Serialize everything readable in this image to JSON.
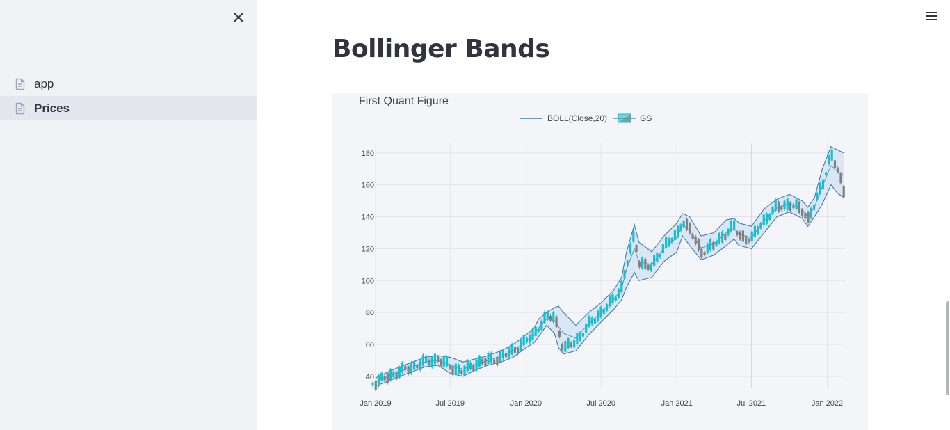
{
  "sidebar": {
    "items": [
      {
        "label": "app",
        "icon": "doc-icon",
        "active": false
      },
      {
        "label": "Prices",
        "icon": "doc-icon",
        "active": true
      }
    ]
  },
  "main": {
    "title": "Bollinger Bands"
  },
  "chart_data": {
    "type": "line",
    "title": "First Quant Figure",
    "xlabel": "",
    "ylabel": "",
    "legend": {
      "placement": "top-center",
      "entries": [
        "BOLL(Close,20)",
        "GS"
      ]
    },
    "x_ticks": [
      "Jan 2019",
      "Jul 2019",
      "Jan 2020",
      "Jul 2020",
      "Jan 2021",
      "Jul 2021",
      "Jan 2022"
    ],
    "y_ticks": [
      40,
      60,
      80,
      100,
      120,
      140,
      160,
      180
    ],
    "ylim": [
      33,
      186
    ],
    "xlim": [
      "2019-01-01",
      "2022-02-13"
    ],
    "grid": true,
    "colors": {
      "band": "#3c78b4",
      "band_fill": "#d2e1f0",
      "candle_up": "#17becf",
      "candle_down": "#808080"
    },
    "series": [
      {
        "name": "GS",
        "kind": "candlestick-approx",
        "x": [
          "2019-01-01",
          "2019-02-01",
          "2019-03-01",
          "2019-04-01",
          "2019-05-01",
          "2019-06-01",
          "2019-07-01",
          "2019-08-01",
          "2019-09-01",
          "2019-10-01",
          "2019-11-01",
          "2019-12-01",
          "2020-01-01",
          "2020-01-20",
          "2020-02-01",
          "2020-02-20",
          "2020-03-10",
          "2020-03-20",
          "2020-04-01",
          "2020-05-01",
          "2020-06-01",
          "2020-07-01",
          "2020-08-01",
          "2020-08-20",
          "2020-09-01",
          "2020-09-20",
          "2020-10-01",
          "2020-11-01",
          "2020-12-01",
          "2021-01-01",
          "2021-01-15",
          "2021-02-01",
          "2021-03-01",
          "2021-04-01",
          "2021-05-01",
          "2021-05-20",
          "2021-06-01",
          "2021-07-01",
          "2021-08-01",
          "2021-09-01",
          "2021-10-01",
          "2021-11-01",
          "2021-11-15",
          "2021-12-01",
          "2021-12-20",
          "2022-01-10",
          "2022-01-25",
          "2022-02-10"
        ],
        "values": [
          36,
          40,
          43,
          46,
          49,
          51,
          46,
          43,
          48,
          50,
          52,
          56,
          62,
          66,
          71,
          77,
          77,
          70,
          57,
          62,
          72,
          80,
          88,
          96,
          110,
          128,
          112,
          108,
          122,
          128,
          138,
          132,
          118,
          122,
          130,
          134,
          128,
          126,
          138,
          146,
          148,
          144,
          139,
          147,
          160,
          180,
          170,
          156
        ]
      },
      {
        "name": "BOLL(Close,20)",
        "kind": "bands",
        "x": [
          "2019-01-01",
          "2019-02-01",
          "2019-03-01",
          "2019-04-01",
          "2019-05-01",
          "2019-06-01",
          "2019-07-01",
          "2019-08-01",
          "2019-09-01",
          "2019-10-01",
          "2019-11-01",
          "2019-12-01",
          "2020-01-01",
          "2020-01-20",
          "2020-02-01",
          "2020-02-20",
          "2020-03-10",
          "2020-03-20",
          "2020-04-01",
          "2020-05-01",
          "2020-06-01",
          "2020-07-01",
          "2020-08-01",
          "2020-08-20",
          "2020-09-01",
          "2020-09-20",
          "2020-10-01",
          "2020-11-01",
          "2020-12-01",
          "2021-01-01",
          "2021-01-15",
          "2021-02-01",
          "2021-03-01",
          "2021-04-01",
          "2021-05-01",
          "2021-05-20",
          "2021-06-01",
          "2021-07-01",
          "2021-08-01",
          "2021-09-01",
          "2021-10-01",
          "2021-11-01",
          "2021-11-15",
          "2021-12-01",
          "2021-12-20",
          "2022-01-10",
          "2022-01-25",
          "2022-02-10"
        ],
        "upper": [
          39,
          43,
          46,
          49,
          52,
          53,
          52,
          49,
          51,
          53,
          56,
          60,
          66,
          70,
          76,
          80,
          83,
          84,
          80,
          72,
          80,
          86,
          94,
          102,
          118,
          135,
          124,
          118,
          128,
          136,
          142,
          140,
          128,
          130,
          138,
          139,
          136,
          134,
          145,
          151,
          154,
          150,
          146,
          152,
          170,
          184,
          182,
          180
        ],
        "lower": [
          34,
          37,
          40,
          43,
          46,
          47,
          42,
          40,
          44,
          47,
          49,
          52,
          58,
          61,
          65,
          72,
          67,
          58,
          54,
          56,
          66,
          74,
          82,
          88,
          96,
          105,
          100,
          102,
          112,
          118,
          128,
          122,
          113,
          116,
          122,
          126,
          122,
          120,
          130,
          140,
          143,
          139,
          134,
          140,
          148,
          160,
          155,
          152
        ]
      }
    ]
  }
}
